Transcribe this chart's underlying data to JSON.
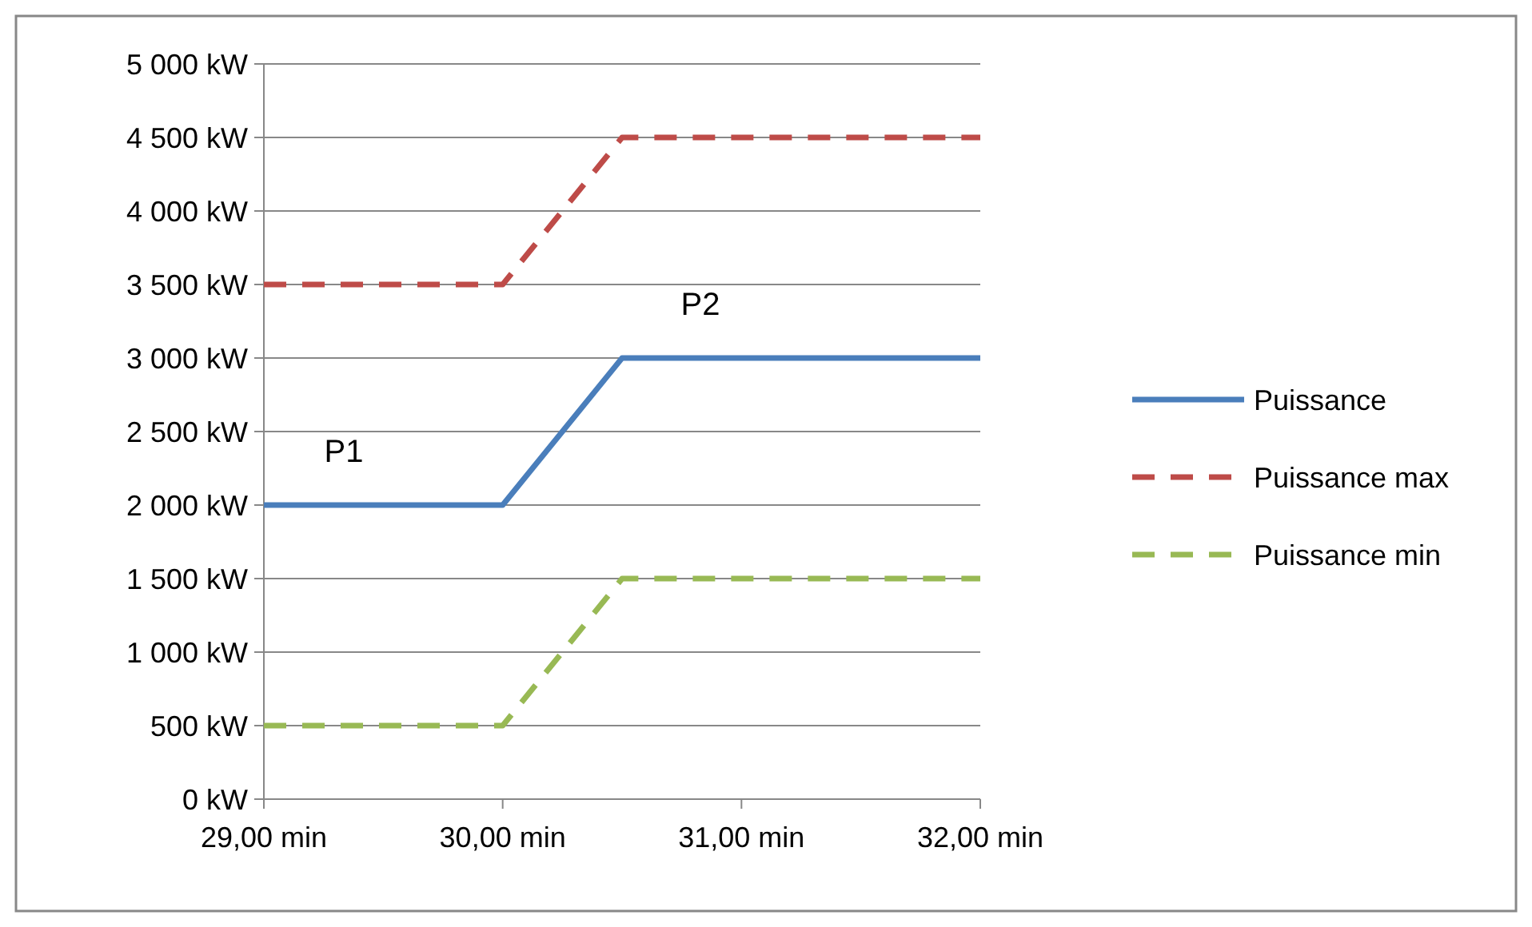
{
  "chart_data": {
    "type": "line",
    "x": [
      29,
      30,
      30.5,
      32
    ],
    "series": [
      {
        "name": "Puissance",
        "color": "#4a7ebb",
        "values": [
          2000,
          2000,
          3000,
          3000
        ],
        "line_style": "solid"
      },
      {
        "name": "Puissance max",
        "color": "#be4b48",
        "values": [
          3500,
          3500,
          4500,
          4500
        ],
        "line_style": "dashed"
      },
      {
        "name": "Puissance min",
        "color": "#98b954",
        "values": [
          500,
          500,
          1500,
          1500
        ],
        "line_style": "dashed"
      }
    ],
    "xlim": [
      29,
      32
    ],
    "xticks": [
      {
        "value": 29,
        "label": "29,00 min"
      },
      {
        "value": 30,
        "label": "30,00 min"
      },
      {
        "value": 31,
        "label": "31,00 min"
      },
      {
        "value": 32,
        "label": "32,00 min"
      }
    ],
    "ylim": [
      0,
      5000
    ],
    "yticks": [
      {
        "value": 0,
        "label": "0 kW"
      },
      {
        "value": 500,
        "label": "500 kW"
      },
      {
        "value": 1000,
        "label": "1 000 kW"
      },
      {
        "value": 1500,
        "label": "1 500 kW"
      },
      {
        "value": 2000,
        "label": "2 000 kW"
      },
      {
        "value": 2500,
        "label": "2 500 kW"
      },
      {
        "value": 3000,
        "label": "3 000 kW"
      },
      {
        "value": 3500,
        "label": "3 500 kW"
      },
      {
        "value": 4000,
        "label": "4 000 kW"
      },
      {
        "value": 4500,
        "label": "4 500 kW"
      },
      {
        "value": 5000,
        "label": "5 000 kW"
      }
    ],
    "grid": "y",
    "legend": "right",
    "marker": "none",
    "annotations": [
      "P1",
      "P2"
    ]
  }
}
